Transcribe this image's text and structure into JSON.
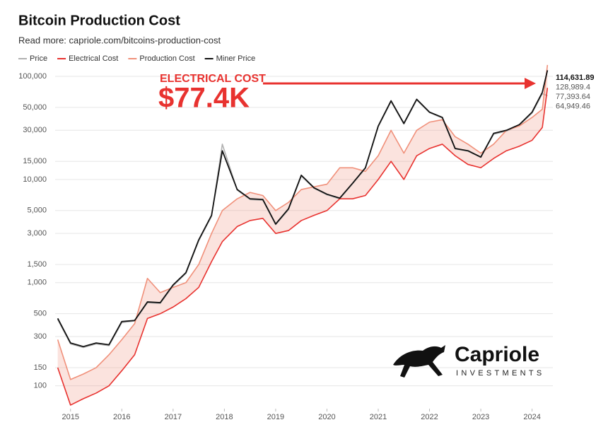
{
  "chart_data": {
    "type": "line",
    "title": "Bitcoin Production Cost",
    "subtitle": "Read more: capriole.com/bitcoins-production-cost",
    "annotation_label": "ELECTRICAL COST",
    "annotation_value": "$77.4K",
    "logo_name": "Capriole",
    "logo_tagline": "INVESTMENTS",
    "y_scale": "log",
    "grid": true,
    "legend": "top-left",
    "xlim": [
      2014.7,
      2024.35
    ],
    "xticks": [
      2015,
      2016,
      2017,
      2018,
      2019,
      2020,
      2021,
      2022,
      2023,
      2024
    ],
    "ylim": [
      60,
      170000
    ],
    "yticks": [
      {
        "value": 100000,
        "label": "100,000"
      },
      {
        "value": 50000,
        "label": "50,000"
      },
      {
        "value": 30000,
        "label": "30,000"
      },
      {
        "value": 15000,
        "label": "15,000"
      },
      {
        "value": 10000,
        "label": "10,000"
      },
      {
        "value": 5000,
        "label": "5,000"
      },
      {
        "value": 3000,
        "label": "3,000"
      },
      {
        "value": 1500,
        "label": "1,500"
      },
      {
        "value": 1000,
        "label": "1,000"
      },
      500,
      300,
      150,
      100
    ],
    "x": [
      2014.75,
      2015,
      2015.25,
      2015.5,
      2015.75,
      2016,
      2016.25,
      2016.5,
      2016.75,
      2017,
      2017.25,
      2017.5,
      2017.75,
      2017.96,
      2018.25,
      2018.5,
      2018.75,
      2019,
      2019.25,
      2019.5,
      2019.75,
      2020,
      2020.25,
      2020.5,
      2020.75,
      2021,
      2021.25,
      2021.5,
      2021.75,
      2022,
      2022.25,
      2022.5,
      2022.75,
      2023,
      2023.25,
      2023.5,
      2023.75,
      2024,
      2024.2,
      2024.3
    ],
    "series": [
      {
        "name": "Price",
        "color": "#b0b0b0",
        "values": [
          440,
          255,
          235,
          255,
          245,
          410,
          425,
          640,
          630,
          930,
          1230,
          2550,
          4400,
          22000,
          7900,
          6400,
          6300,
          3650,
          5100,
          10800,
          8200,
          7100,
          6500,
          9100,
          12800,
          32500,
          57000,
          34500,
          59000,
          44500,
          39500,
          19800,
          18800,
          16400,
          27500,
          29500,
          33500,
          44000,
          68000,
          64949.46
        ],
        "value_labels": [
          null,
          null,
          null,
          null,
          null,
          null,
          null,
          null,
          null,
          null,
          null,
          null,
          null,
          null,
          null,
          null,
          null,
          null,
          null,
          null,
          null,
          null,
          null,
          null,
          null,
          null,
          null,
          null,
          null,
          null,
          null,
          null,
          null,
          null,
          null,
          null,
          null,
          null,
          null,
          "64,949.46"
        ]
      },
      {
        "name": "Electrical Cost",
        "color": "#e8322f",
        "values": [
          150,
          65,
          75,
          85,
          100,
          140,
          200,
          450,
          500,
          580,
          700,
          900,
          1600,
          2500,
          3500,
          4000,
          4200,
          3000,
          3200,
          4000,
          4500,
          5000,
          6500,
          6500,
          7000,
          10000,
          15000,
          10000,
          17000,
          20000,
          22000,
          17000,
          14000,
          13000,
          16000,
          19000,
          21000,
          24000,
          32000,
          77393.64
        ],
        "value_labels": [
          null,
          null,
          null,
          null,
          null,
          null,
          null,
          null,
          null,
          null,
          null,
          null,
          null,
          null,
          null,
          null,
          null,
          null,
          null,
          null,
          null,
          null,
          null,
          null,
          null,
          null,
          null,
          null,
          null,
          null,
          null,
          null,
          null,
          null,
          null,
          null,
          null,
          null,
          null,
          "77,393.64"
        ]
      },
      {
        "name": "Production Cost",
        "color": "#f0907a",
        "values": [
          280,
          115,
          130,
          150,
          200,
          280,
          400,
          1100,
          800,
          900,
          1000,
          1500,
          3000,
          5000,
          6500,
          7500,
          7000,
          5000,
          6000,
          8000,
          8500,
          9000,
          13000,
          13000,
          12000,
          17000,
          30000,
          18000,
          30000,
          36000,
          38000,
          26000,
          22000,
          18000,
          22000,
          30000,
          33000,
          40000,
          48000,
          128989.4
        ],
        "value_labels": [
          null,
          null,
          null,
          null,
          null,
          null,
          null,
          null,
          null,
          null,
          null,
          null,
          null,
          null,
          null,
          null,
          null,
          null,
          null,
          null,
          null,
          null,
          null,
          null,
          null,
          null,
          null,
          null,
          null,
          null,
          null,
          null,
          null,
          null,
          null,
          null,
          null,
          null,
          null,
          "128,989.4"
        ]
      },
      {
        "name": "Miner Price",
        "color": "#111111",
        "values": [
          450,
          260,
          240,
          260,
          250,
          420,
          430,
          650,
          640,
          950,
          1250,
          2600,
          4500,
          19000,
          8000,
          6500,
          6400,
          3700,
          5200,
          11000,
          8300,
          7200,
          6600,
          9200,
          13000,
          33000,
          58000,
          35000,
          60000,
          45000,
          40000,
          20000,
          19000,
          16500,
          28000,
          30000,
          34000,
          45000,
          70000,
          114631.89
        ],
        "value_labels": [
          null,
          null,
          null,
          null,
          null,
          null,
          null,
          null,
          null,
          null,
          null,
          null,
          null,
          null,
          null,
          null,
          null,
          null,
          null,
          null,
          null,
          null,
          null,
          null,
          null,
          null,
          null,
          null,
          null,
          null,
          null,
          null,
          null,
          null,
          null,
          null,
          null,
          null,
          null,
          "114,631.89"
        ]
      }
    ]
  }
}
